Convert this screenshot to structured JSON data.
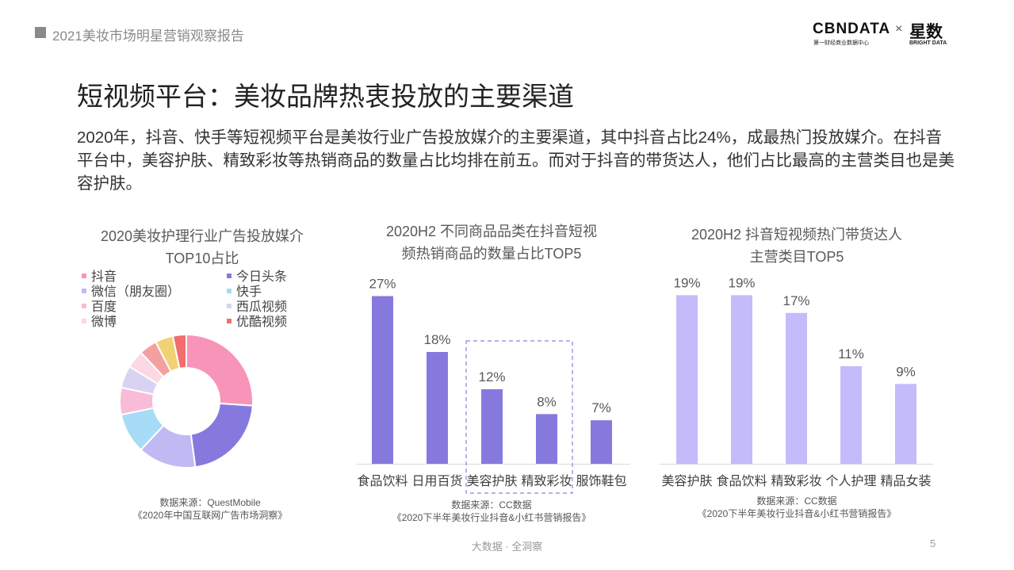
{
  "header": {
    "report_title": "2021美妆市场明星营销观察报告"
  },
  "logo": {
    "cbn": "CBNDATA",
    "cbn_sub": "第一财经商业数据中心",
    "times": "×",
    "xingshu": "星数",
    "xingshu_sub": "BRIGHT DATA"
  },
  "page_title": "短视频平台：美妆品牌热衷投放的主要渠道",
  "intro": "2020年，抖音、快手等短视频平台是美妆行业广告投放媒介的主要渠道，其中抖音占比24%，成最热门投放媒介。在抖音平台中，美容护肤、精致彩妆等热销商品的数量占比均排在前五。而对于抖音的带货达人，他们占比最高的主营类目也是美容护肤。",
  "chart_data": [
    {
      "type": "pie",
      "title": "2020美妆护理行业广告投放媒介\nTOP10占比",
      "title_lines": [
        "2020美妆护理行业广告投放媒介",
        "TOP10占比"
      ],
      "legend": [
        "抖音",
        "今日头条",
        "微信（朋友圈）",
        "快手",
        "百度",
        "西瓜视频",
        "微博",
        "优酷视频"
      ],
      "categories": [
        "抖音",
        "今日头条",
        "微信（朋友圈）",
        "快手",
        "百度",
        "西瓜视频",
        "微博",
        "",
        "",
        "优酷视频"
      ],
      "values": [
        24,
        20,
        13,
        9,
        6,
        5,
        4,
        4,
        4,
        3
      ],
      "colors": [
        "#f794b8",
        "#8679de",
        "#c0b9f3",
        "#a6dcf6",
        "#f8bbd8",
        "#d9d3f3",
        "#fbd8e4",
        "#f4a0a0",
        "#f1d173",
        "#f26d6d"
      ],
      "source_lines": [
        "数据来源：QuestMobile",
        "《2020年中国互联网广告市场洞察》"
      ]
    },
    {
      "type": "bar",
      "title": "2020H2 不同商品品类在抖音短视\n频热销商品的数量占比TOP5",
      "title_lines": [
        "2020H2 不同商品品类在抖音短视",
        "频热销商品的数量占比TOP5"
      ],
      "categories": [
        "食品饮料",
        "日用百货",
        "美容护肤",
        "精致彩妆",
        "服饰鞋包"
      ],
      "values": [
        27,
        18,
        12,
        8,
        7
      ],
      "value_labels": [
        "27%",
        "18%",
        "12%",
        "8%",
        "7%"
      ],
      "ylim": [
        0,
        30
      ],
      "color": "#8679de",
      "highlight": [
        "美容护肤",
        "精致彩妆"
      ],
      "source_lines": [
        "数据来源：CC数据",
        "《2020下半年美妆行业抖音&小红书营销报告》"
      ]
    },
    {
      "type": "bar",
      "title": "2020H2 抖音短视频热门带货达人\n主营类目TOP5",
      "title_lines": [
        "2020H2 抖音短视频热门带货达人",
        "主营类目TOP5"
      ],
      "categories": [
        "美容护肤",
        "食品饮料",
        "精致彩妆",
        "个人护理",
        "精品女装"
      ],
      "values": [
        19,
        19,
        17,
        11,
        9
      ],
      "value_labels": [
        "19%",
        "19%",
        "17%",
        "11%",
        "9%"
      ],
      "ylim": [
        0,
        21
      ],
      "color": "#c4bbfb",
      "source_lines": [
        "数据来源：CC数据",
        "《2020下半年美妆行业抖音&小红书营销报告》"
      ]
    }
  ],
  "footer": {
    "tagline": "大数据 · 全洞察",
    "page_number": "5"
  }
}
